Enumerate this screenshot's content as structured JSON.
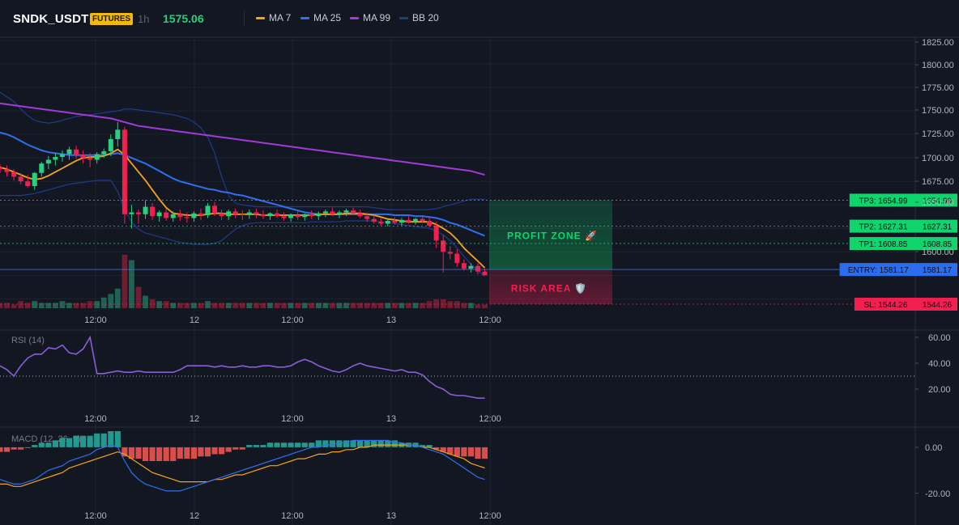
{
  "header": {
    "symbol": "SNDK_USDT",
    "badge": "FUTURES",
    "timeframe": "1h",
    "last_price": "1575.06",
    "legend": [
      {
        "label": "MA 7",
        "color": "#f7a21b"
      },
      {
        "label": "MA 25",
        "color": "#2f6ff0"
      },
      {
        "label": "MA 99",
        "color": "#a23ad8"
      },
      {
        "label": "BB 20",
        "color": "#1f3b8c"
      }
    ]
  },
  "price_axis": {
    "ticks": [
      "1825.00",
      "1800.00",
      "1775.00",
      "1750.00",
      "1725.00",
      "1700.00",
      "1675.00",
      "1650.00",
      "1600.00"
    ],
    "range": [
      1540,
      1825
    ]
  },
  "time_axis": [
    "12:00",
    "12",
    "12:00",
    "13",
    "12:00"
  ],
  "levels": [
    {
      "name": "tp3",
      "label": "TP3: 1654.99",
      "value": "1654.99",
      "price": 1654.99,
      "color": "#10d46c"
    },
    {
      "name": "tp2",
      "label": "TP2: 1627.31",
      "value": "1627.31",
      "price": 1627.31,
      "color": "#10d46c"
    },
    {
      "name": "tp1",
      "label": "TP1: 1608.85",
      "value": "1608.85",
      "price": 1608.85,
      "color": "#10d46c"
    },
    {
      "name": "entry",
      "label": "ENTRY: 1581.17",
      "value": "1581.17",
      "price": 1581.17,
      "color": "#2a6df0"
    },
    {
      "name": "sl",
      "label": "SL: 1544.26",
      "value": "1544.26",
      "price": 1544.26,
      "color": "#f2204f"
    }
  ],
  "zones": {
    "profit_label": "PROFIT ZONE 🚀",
    "risk_label": "RISK AREA 🛡️",
    "profit_color": "#10d46c",
    "risk_color": "#f2204f"
  },
  "rsi": {
    "title": "RSI (14)",
    "ticks": [
      "60.00",
      "40.00",
      "20.00"
    ],
    "range": [
      5,
      65
    ],
    "reference": 30
  },
  "macd": {
    "title": "MACD (12, 26, 9)",
    "ticks": [
      "0.00",
      "-20.00"
    ],
    "range": [
      -25,
      7
    ]
  },
  "colors": {
    "bull": "#26d07c",
    "bear": "#f2204f",
    "grid": "#1f2330",
    "bg": "#131722"
  },
  "chart_data": {
    "type": "candlestick",
    "candles": [
      [
        1690,
        1693,
        1684,
        1688
      ],
      [
        1688,
        1692,
        1680,
        1685
      ],
      [
        1685,
        1688,
        1676,
        1680
      ],
      [
        1680,
        1684,
        1672,
        1675
      ],
      [
        1675,
        1682,
        1668,
        1670
      ],
      [
        1670,
        1685,
        1666,
        1684
      ],
      [
        1684,
        1696,
        1680,
        1694
      ],
      [
        1694,
        1702,
        1688,
        1698
      ],
      [
        1698,
        1705,
        1692,
        1701
      ],
      [
        1701,
        1708,
        1696,
        1704
      ],
      [
        1704,
        1712,
        1698,
        1709
      ],
      [
        1709,
        1713,
        1699,
        1703
      ],
      [
        1703,
        1708,
        1694,
        1700
      ],
      [
        1700,
        1705,
        1690,
        1698
      ],
      [
        1698,
        1706,
        1694,
        1704
      ],
      [
        1704,
        1710,
        1700,
        1707
      ],
      [
        1707,
        1725,
        1702,
        1720
      ],
      [
        1720,
        1738,
        1712,
        1730
      ],
      [
        1730,
        1733,
        1630,
        1640
      ],
      [
        1640,
        1650,
        1625,
        1642
      ],
      [
        1642,
        1645,
        1630,
        1640
      ],
      [
        1640,
        1655,
        1635,
        1648
      ],
      [
        1648,
        1652,
        1634,
        1638
      ],
      [
        1638,
        1644,
        1632,
        1642
      ],
      [
        1642,
        1646,
        1633,
        1636
      ],
      [
        1636,
        1643,
        1632,
        1640
      ],
      [
        1640,
        1645,
        1633,
        1637
      ],
      [
        1637,
        1642,
        1631,
        1636
      ],
      [
        1636,
        1643,
        1632,
        1641
      ],
      [
        1641,
        1646,
        1634,
        1639
      ],
      [
        1639,
        1652,
        1636,
        1649
      ],
      [
        1649,
        1653,
        1638,
        1641
      ],
      [
        1641,
        1645,
        1634,
        1638
      ],
      [
        1638,
        1645,
        1634,
        1643
      ],
      [
        1643,
        1646,
        1636,
        1640
      ],
      [
        1640,
        1644,
        1634,
        1639
      ],
      [
        1639,
        1645,
        1635,
        1642
      ],
      [
        1642,
        1646,
        1636,
        1640
      ],
      [
        1640,
        1644,
        1635,
        1638
      ],
      [
        1638,
        1642,
        1634,
        1641
      ],
      [
        1641,
        1645,
        1636,
        1638
      ],
      [
        1638,
        1642,
        1633,
        1636
      ],
      [
        1636,
        1641,
        1632,
        1639
      ],
      [
        1639,
        1643,
        1634,
        1637
      ],
      [
        1637,
        1641,
        1633,
        1640
      ],
      [
        1640,
        1644,
        1635,
        1638
      ],
      [
        1638,
        1643,
        1634,
        1641
      ],
      [
        1641,
        1645,
        1637,
        1643
      ],
      [
        1643,
        1647,
        1638,
        1640
      ],
      [
        1640,
        1644,
        1636,
        1642
      ],
      [
        1642,
        1646,
        1638,
        1644
      ],
      [
        1644,
        1647,
        1639,
        1641
      ],
      [
        1641,
        1645,
        1636,
        1638
      ],
      [
        1638,
        1642,
        1632,
        1635
      ],
      [
        1635,
        1639,
        1630,
        1632
      ],
      [
        1632,
        1636,
        1628,
        1630
      ],
      [
        1630,
        1635,
        1627,
        1633
      ],
      [
        1633,
        1637,
        1629,
        1631
      ],
      [
        1631,
        1636,
        1628,
        1634
      ],
      [
        1634,
        1638,
        1630,
        1632
      ],
      [
        1632,
        1636,
        1629,
        1635
      ],
      [
        1635,
        1639,
        1631,
        1633
      ],
      [
        1633,
        1637,
        1626,
        1628
      ],
      [
        1628,
        1632,
        1604,
        1612
      ],
      [
        1612,
        1618,
        1578,
        1600
      ],
      [
        1600,
        1606,
        1592,
        1598
      ],
      [
        1598,
        1603,
        1584,
        1588
      ],
      [
        1588,
        1592,
        1580,
        1582
      ],
      [
        1582,
        1588,
        1578,
        1585
      ],
      [
        1585,
        1588,
        1576,
        1579
      ],
      [
        1579,
        1582,
        1575,
        1575
      ]
    ],
    "volume": [
      3,
      3,
      2,
      4,
      3,
      4,
      3,
      3,
      3,
      4,
      3,
      3,
      3,
      4,
      4,
      6,
      8,
      11,
      30,
      27,
      12,
      7,
      5,
      4,
      4,
      3,
      3,
      3,
      3,
      3,
      4,
      3,
      3,
      3,
      3,
      3,
      3,
      3,
      3,
      3,
      3,
      3,
      3,
      3,
      3,
      3,
      3,
      3,
      3,
      3,
      3,
      3,
      3,
      3,
      3,
      3,
      3,
      3,
      3,
      3,
      3,
      3,
      4,
      5,
      5,
      4,
      4,
      3,
      3,
      2,
      2
    ],
    "rsi": [
      38,
      35,
      30,
      38,
      44,
      47,
      47,
      52,
      51,
      54,
      48,
      47,
      51,
      60,
      32,
      32,
      33,
      34,
      33,
      33,
      34,
      33,
      33,
      33,
      33,
      33,
      35,
      38,
      38,
      38,
      38,
      37,
      38,
      37,
      37,
      38,
      37,
      37,
      38,
      38,
      37,
      37,
      38,
      41,
      43,
      41,
      38,
      36,
      34,
      33,
      35,
      38,
      40,
      38,
      37,
      36,
      35,
      34,
      35,
      33,
      33,
      31,
      26,
      22,
      20,
      16,
      15,
      15,
      14,
      13,
      13
    ],
    "macd_hist": [
      -2,
      -2,
      -1,
      -1,
      0,
      1,
      2,
      2,
      3,
      4,
      4,
      5,
      5,
      5,
      6,
      6,
      7,
      7,
      -4,
      -5,
      -5,
      -6,
      -6,
      -6,
      -6,
      -6,
      -5,
      -5,
      -5,
      -4,
      -4,
      -3,
      -3,
      -2,
      -1,
      -1,
      1,
      1,
      1,
      2,
      2,
      2,
      2,
      2,
      2,
      2,
      3,
      3,
      3,
      3,
      3,
      3,
      3,
      3,
      3,
      3,
      3,
      3,
      2,
      2,
      2,
      1,
      1,
      -1,
      -2,
      -3,
      -4,
      -4,
      -4,
      -5,
      -5
    ],
    "macd_line": [
      -14,
      -15,
      -16,
      -16,
      -15,
      -14,
      -12,
      -10,
      -9,
      -8,
      -6,
      -5,
      -4,
      -3,
      -1,
      0,
      1,
      0,
      -6,
      -11,
      -14,
      -16,
      -17,
      -18,
      -19,
      -19,
      -19,
      -18,
      -17,
      -16,
      -15,
      -14,
      -13,
      -12,
      -11,
      -10,
      -9,
      -8,
      -7,
      -6,
      -5,
      -4,
      -3,
      -2,
      -1,
      0,
      0,
      1,
      1,
      2,
      2,
      3,
      3,
      3,
      3,
      3,
      3,
      2,
      2,
      1,
      1,
      0,
      -1,
      -2,
      -3,
      -5,
      -7,
      -9,
      -11,
      -13,
      -14
    ],
    "signal_line": [
      -16,
      -16,
      -17,
      -17,
      -16,
      -15,
      -14,
      -13,
      -12,
      -11,
      -9,
      -8,
      -7,
      -6,
      -5,
      -4,
      -3,
      -2,
      -3,
      -5,
      -7,
      -9,
      -11,
      -12,
      -13,
      -14,
      -15,
      -15,
      -15,
      -15,
      -15,
      -14,
      -14,
      -13,
      -12,
      -12,
      -11,
      -10,
      -9,
      -8,
      -8,
      -7,
      -6,
      -5,
      -5,
      -4,
      -3,
      -3,
      -2,
      -2,
      -1,
      -1,
      0,
      0,
      1,
      1,
      1,
      1,
      1,
      1,
      1,
      0,
      0,
      -1,
      -2,
      -3,
      -4,
      -5,
      -7,
      -8,
      -9
    ],
    "ma7": [
      1690,
      1688,
      1685,
      1682,
      1679,
      1677,
      1678,
      1681,
      1685,
      1689,
      1693,
      1697,
      1700,
      1701,
      1701,
      1702,
      1705,
      1709,
      1703,
      1694,
      1685,
      1676,
      1666,
      1656,
      1647,
      1641,
      1640,
      1639,
      1639,
      1639,
      1640,
      1641,
      1641,
      1640,
      1640,
      1640,
      1640,
      1640,
      1639,
      1639,
      1639,
      1639,
      1639,
      1639,
      1639,
      1639,
      1640,
      1640,
      1640,
      1640,
      1641,
      1641,
      1641,
      1640,
      1639,
      1637,
      1635,
      1634,
      1633,
      1632,
      1632,
      1632,
      1632,
      1629,
      1625,
      1620,
      1613,
      1604,
      1597,
      1590,
      1583
    ],
    "ma25": [
      1727,
      1725,
      1722,
      1718,
      1714,
      1711,
      1708,
      1706,
      1705,
      1704,
      1703,
      1703,
      1703,
      1703,
      1703,
      1703,
      1704,
      1705,
      1703,
      1700,
      1697,
      1694,
      1690,
      1686,
      1682,
      1678,
      1675,
      1673,
      1671,
      1669,
      1667,
      1666,
      1664,
      1663,
      1661,
      1660,
      1658,
      1656,
      1654,
      1652,
      1650,
      1648,
      1646,
      1644,
      1642,
      1641,
      1640,
      1640,
      1640,
      1640,
      1640,
      1640,
      1640,
      1640,
      1640,
      1640,
      1640,
      1639,
      1639,
      1639,
      1638,
      1638,
      1637,
      1636,
      1634,
      1631,
      1629,
      1626,
      1623,
      1620,
      1617
    ],
    "ma99": [
      1758,
      1757,
      1756,
      1755,
      1754,
      1753,
      1752,
      1751,
      1750,
      1749,
      1748,
      1747,
      1746,
      1745,
      1744,
      1743,
      1742,
      1740,
      1738,
      1736,
      1734,
      1733,
      1732,
      1731,
      1730,
      1729,
      1728,
      1727,
      1726,
      1725,
      1724,
      1723,
      1722,
      1721,
      1720,
      1719,
      1718,
      1717,
      1716,
      1715,
      1714,
      1713,
      1712,
      1711,
      1710,
      1709,
      1708,
      1707,
      1706,
      1705,
      1704,
      1703,
      1702,
      1701,
      1700,
      1699,
      1698,
      1697,
      1696,
      1695,
      1694,
      1693,
      1692,
      1691,
      1690,
      1689,
      1688,
      1687,
      1686,
      1684,
      1682
    ],
    "bb_upper": [
      1770,
      1765,
      1760,
      1752,
      1745,
      1740,
      1738,
      1737,
      1738,
      1740,
      1742,
      1744,
      1745,
      1746,
      1747,
      1748,
      1749,
      1750,
      1752,
      1752,
      1751,
      1750,
      1749,
      1748,
      1747,
      1746,
      1744,
      1742,
      1738,
      1732,
      1722,
      1705,
      1680,
      1660,
      1652,
      1650,
      1649,
      1648,
      1648,
      1648,
      1648,
      1648,
      1648,
      1648,
      1648,
      1648,
      1648,
      1648,
      1648,
      1648,
      1648,
      1648,
      1648,
      1648,
      1647,
      1646,
      1645,
      1645,
      1645,
      1645,
      1645,
      1645,
      1645,
      1646,
      1648,
      1650,
      1652,
      1654,
      1656,
      1656,
      1656
    ],
    "bb_lower": [
      1660,
      1660,
      1660,
      1660,
      1661,
      1662,
      1664,
      1666,
      1668,
      1670,
      1672,
      1673,
      1674,
      1675,
      1676,
      1676,
      1676,
      1664,
      1645,
      1632,
      1624,
      1620,
      1618,
      1616,
      1614,
      1612,
      1610,
      1609,
      1608,
      1608,
      1608,
      1609,
      1612,
      1618,
      1624,
      1628,
      1630,
      1631,
      1631,
      1631,
      1631,
      1631,
      1631,
      1631,
      1631,
      1632,
      1632,
      1632,
      1632,
      1632,
      1633,
      1633,
      1633,
      1633,
      1633,
      1632,
      1631,
      1630,
      1629,
      1628,
      1627,
      1626,
      1625,
      1622,
      1618,
      1612,
      1604,
      1595,
      1587,
      1580,
      1574
    ]
  }
}
